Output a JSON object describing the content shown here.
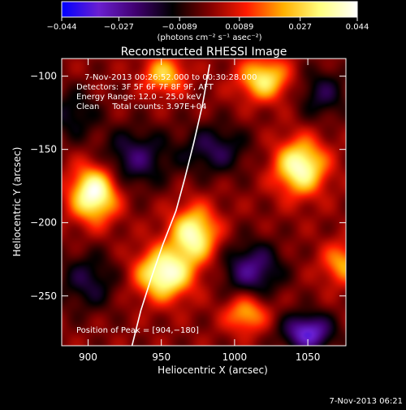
{
  "chart_data": {
    "type": "heatmap",
    "title": "Reconstructed RHESSI Image",
    "xlabel": "Heliocentric X (arcsec)",
    "ylabel": "Heliocentric Y (arcsec)",
    "xlim": [
      882,
      1076
    ],
    "ylim": [
      -284,
      -88
    ],
    "x_ticks": [
      900,
      950,
      1000,
      1050
    ],
    "y_ticks": [
      -100,
      -150,
      -200,
      -250
    ],
    "x_tick_labels": [
      "900",
      "950",
      "1000",
      "1050"
    ],
    "y_tick_labels": [
      "−100",
      "−150",
      "−200",
      "−250"
    ],
    "colorbar": {
      "range": [
        -0.044,
        0.044
      ],
      "ticks": [
        -0.044,
        -0.027,
        -0.0089,
        0.0089,
        0.027,
        0.044
      ],
      "tick_labels": [
        "−0.044",
        "−0.027",
        "−0.0089",
        "0.0089",
        "0.027",
        "0.044"
      ],
      "units_label": "(photons cm⁻² s⁻¹ asec⁻²)",
      "colormap": "fire",
      "colors": [
        "#0000ff",
        "#6a1fd0",
        "#400070",
        "#000000",
        "#800000",
        "#ff1a00",
        "#ffb000",
        "#ffff80",
        "#ffffff"
      ]
    },
    "annotations": [
      "7‑Nov‑2013 00:26:52.000 to 00:30:28.000",
      "Detectors: 3F 5F 6F 7F 8F 9F, AFT",
      "Energy Range: 12.0 – 25.0 keV",
      "Clean     Total counts: 3.97E+04",
      "Position of Peak = [904,−180]"
    ],
    "peak": {
      "x": 904,
      "y": -180
    },
    "sources": [
      {
        "x": 904,
        "y": -180,
        "amp": 0.044,
        "sx": 11,
        "sy": 13
      },
      {
        "x": 952,
        "y": -235,
        "amp": 0.042,
        "sx": 13,
        "sy": 12
      },
      {
        "x": 972,
        "y": -208,
        "amp": 0.038,
        "sx": 11,
        "sy": 13
      },
      {
        "x": 1045,
        "y": -162,
        "amp": 0.04,
        "sx": 12,
        "sy": 13
      },
      {
        "x": 1020,
        "y": -102,
        "amp": 0.032,
        "sx": 12,
        "sy": 10
      },
      {
        "x": 952,
        "y": -99,
        "amp": 0.026,
        "sx": 10,
        "sy": 9
      },
      {
        "x": 1008,
        "y": -262,
        "amp": 0.024,
        "sx": 10,
        "sy": 9
      },
      {
        "x": 1074,
        "y": -228,
        "amp": 0.022,
        "sx": 10,
        "sy": 10
      },
      {
        "x": 932,
        "y": -156,
        "amp": -0.02,
        "sx": 16,
        "sy": 14
      },
      {
        "x": 1012,
        "y": -232,
        "amp": -0.024,
        "sx": 14,
        "sy": 13
      },
      {
        "x": 1050,
        "y": -275,
        "amp": -0.034,
        "sx": 12,
        "sy": 9
      },
      {
        "x": 900,
        "y": -240,
        "amp": -0.016,
        "sx": 14,
        "sy": 14
      },
      {
        "x": 986,
        "y": -150,
        "amp": -0.018,
        "sx": 16,
        "sy": 12
      },
      {
        "x": 1060,
        "y": -112,
        "amp": -0.016,
        "sx": 12,
        "sy": 12
      },
      {
        "x": 890,
        "y": -126,
        "amp": -0.014,
        "sx": 12,
        "sy": 12
      }
    ],
    "limb": [
      {
        "x": 930,
        "y": -284
      },
      {
        "x": 936,
        "y": -260
      },
      {
        "x": 943,
        "y": -238
      },
      {
        "x": 951,
        "y": -215
      },
      {
        "x": 960,
        "y": -192
      },
      {
        "x": 966,
        "y": -170
      },
      {
        "x": 972,
        "y": -146
      },
      {
        "x": 978,
        "y": -120
      },
      {
        "x": 983,
        "y": -92
      }
    ],
    "grid": false
  },
  "footer": {
    "timestamp": "7‑Nov‑2013 06:21"
  }
}
